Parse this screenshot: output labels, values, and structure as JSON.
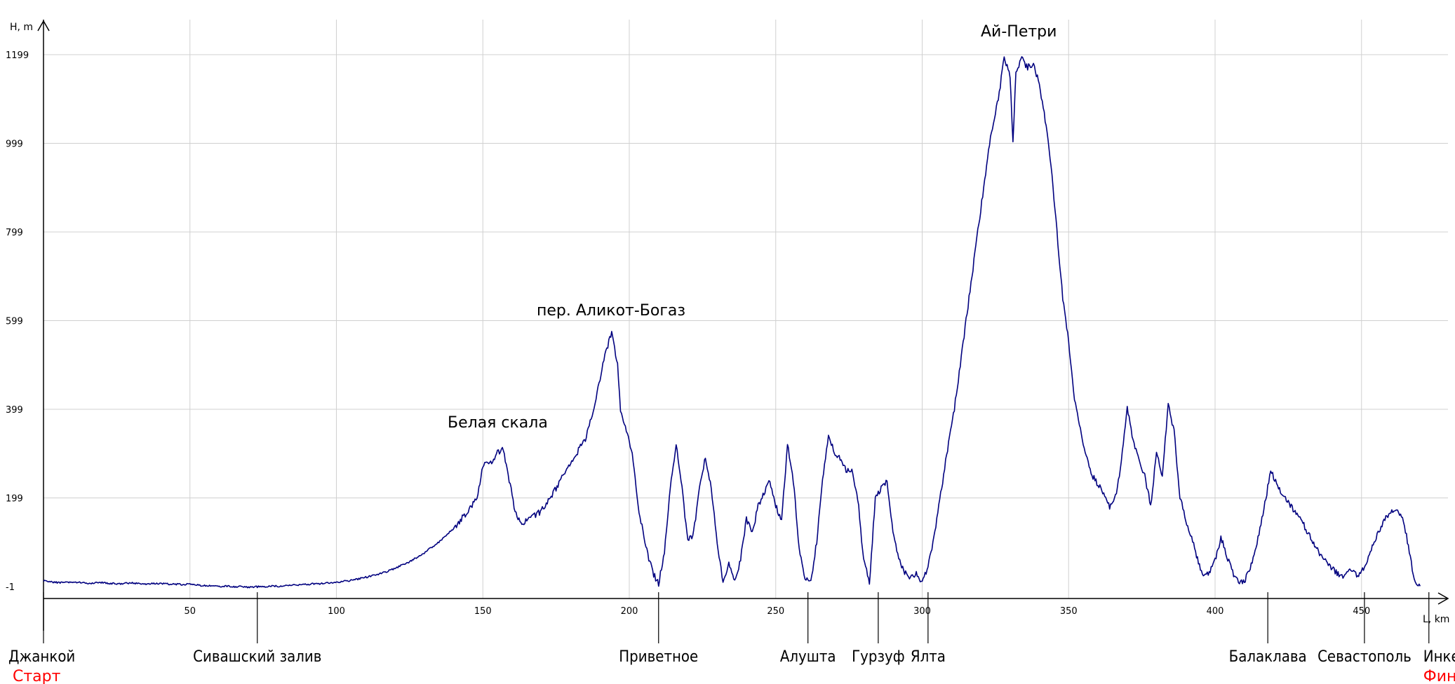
{
  "chart_data": {
    "type": "line",
    "ylabel": "H, m",
    "xlabel": "L, km",
    "xlim": [
      0,
      480
    ],
    "ylim": [
      -1,
      1199
    ],
    "x_ticks": [
      50,
      100,
      150,
      200,
      250,
      300,
      350,
      400,
      450
    ],
    "y_ticks": [
      -1,
      199,
      399,
      599,
      799,
      999,
      1199
    ],
    "grid": true,
    "line_color": "#00007f",
    "series": [
      {
        "values": [
          [
            0,
            12
          ],
          [
            5,
            8
          ],
          [
            10,
            10
          ],
          [
            15,
            6
          ],
          [
            20,
            8
          ],
          [
            25,
            5
          ],
          [
            30,
            7
          ],
          [
            35,
            5
          ],
          [
            40,
            6
          ],
          [
            45,
            4
          ],
          [
            50,
            4
          ],
          [
            55,
            1
          ],
          [
            60,
            0
          ],
          [
            65,
            -1
          ],
          [
            70,
            -2
          ],
          [
            75,
            -1
          ],
          [
            80,
            0
          ],
          [
            85,
            2
          ],
          [
            90,
            4
          ],
          [
            95,
            6
          ],
          [
            100,
            9
          ],
          [
            105,
            13
          ],
          [
            110,
            20
          ],
          [
            115,
            28
          ],
          [
            120,
            40
          ],
          [
            125,
            55
          ],
          [
            130,
            75
          ],
          [
            135,
            100
          ],
          [
            140,
            130
          ],
          [
            145,
            170
          ],
          [
            148,
            200
          ],
          [
            150,
            270
          ],
          [
            153,
            280
          ],
          [
            155,
            300
          ],
          [
            157,
            310
          ],
          [
            159,
            240
          ],
          [
            161,
            170
          ],
          [
            163,
            140
          ],
          [
            166,
            150
          ],
          [
            170,
            170
          ],
          [
            175,
            220
          ],
          [
            180,
            280
          ],
          [
            185,
            330
          ],
          [
            188,
            400
          ],
          [
            190,
            470
          ],
          [
            192,
            530
          ],
          [
            194,
            570
          ],
          [
            196,
            500
          ],
          [
            197,
            390
          ],
          [
            199,
            350
          ],
          [
            201,
            300
          ],
          [
            203,
            180
          ],
          [
            206,
            80
          ],
          [
            208,
            30
          ],
          [
            210,
            5
          ],
          [
            212,
            80
          ],
          [
            214,
            220
          ],
          [
            216,
            320
          ],
          [
            218,
            220
          ],
          [
            220,
            100
          ],
          [
            222,
            120
          ],
          [
            224,
            220
          ],
          [
            226,
            290
          ],
          [
            228,
            220
          ],
          [
            230,
            100
          ],
          [
            232,
            10
          ],
          [
            234,
            50
          ],
          [
            236,
            10
          ],
          [
            238,
            60
          ],
          [
            240,
            150
          ],
          [
            242,
            120
          ],
          [
            244,
            180
          ],
          [
            246,
            210
          ],
          [
            248,
            240
          ],
          [
            250,
            180
          ],
          [
            252,
            150
          ],
          [
            254,
            320
          ],
          [
            256,
            240
          ],
          [
            258,
            80
          ],
          [
            260,
            20
          ],
          [
            262,
            10
          ],
          [
            264,
            100
          ],
          [
            266,
            240
          ],
          [
            268,
            340
          ],
          [
            270,
            300
          ],
          [
            272,
            290
          ],
          [
            274,
            260
          ],
          [
            276,
            260
          ],
          [
            278,
            200
          ],
          [
            280,
            60
          ],
          [
            282,
            5
          ],
          [
            284,
            200
          ],
          [
            286,
            220
          ],
          [
            288,
            240
          ],
          [
            290,
            120
          ],
          [
            292,
            60
          ],
          [
            294,
            30
          ],
          [
            296,
            20
          ],
          [
            298,
            30
          ],
          [
            300,
            10
          ],
          [
            302,
            40
          ],
          [
            305,
            150
          ],
          [
            308,
            280
          ],
          [
            311,
            400
          ],
          [
            314,
            550
          ],
          [
            317,
            700
          ],
          [
            320,
            850
          ],
          [
            323,
            1000
          ],
          [
            326,
            1100
          ],
          [
            328,
            1190
          ],
          [
            330,
            1150
          ],
          [
            331,
            1000
          ],
          [
            332,
            1160
          ],
          [
            334,
            1190
          ],
          [
            336,
            1170
          ],
          [
            338,
            1180
          ],
          [
            340,
            1130
          ],
          [
            342,
            1050
          ],
          [
            344,
            950
          ],
          [
            346,
            800
          ],
          [
            348,
            650
          ],
          [
            350,
            550
          ],
          [
            352,
            420
          ],
          [
            355,
            320
          ],
          [
            358,
            250
          ],
          [
            361,
            220
          ],
          [
            364,
            180
          ],
          [
            366,
            200
          ],
          [
            368,
            280
          ],
          [
            370,
            400
          ],
          [
            372,
            330
          ],
          [
            374,
            280
          ],
          [
            376,
            250
          ],
          [
            378,
            180
          ],
          [
            380,
            300
          ],
          [
            382,
            250
          ],
          [
            384,
            410
          ],
          [
            386,
            350
          ],
          [
            388,
            200
          ],
          [
            390,
            150
          ],
          [
            392,
            110
          ],
          [
            394,
            60
          ],
          [
            396,
            20
          ],
          [
            398,
            30
          ],
          [
            400,
            60
          ],
          [
            402,
            110
          ],
          [
            404,
            70
          ],
          [
            406,
            30
          ],
          [
            408,
            10
          ],
          [
            410,
            10
          ],
          [
            413,
            60
          ],
          [
            416,
            150
          ],
          [
            419,
            260
          ],
          [
            422,
            220
          ],
          [
            425,
            190
          ],
          [
            428,
            160
          ],
          [
            431,
            130
          ],
          [
            434,
            90
          ],
          [
            437,
            60
          ],
          [
            440,
            40
          ],
          [
            443,
            20
          ],
          [
            446,
            40
          ],
          [
            449,
            20
          ],
          [
            452,
            60
          ],
          [
            455,
            110
          ],
          [
            458,
            150
          ],
          [
            461,
            175
          ],
          [
            464,
            160
          ],
          [
            466,
            90
          ],
          [
            468,
            10
          ],
          [
            470,
            0
          ]
        ]
      }
    ]
  },
  "peak_labels": {
    "ai_petri": "Ай-Петри",
    "alikot": "пер. Аликот-Богаз",
    "belaya": "Белая скала"
  },
  "places": [
    {
      "km": 0,
      "name": "Джанкой",
      "sub": "Старт"
    },
    {
      "km": 73,
      "name": "Сивашский залив"
    },
    {
      "km": 210,
      "name": "Приветное"
    },
    {
      "km": 261,
      "name": "Алушта"
    },
    {
      "km": 285,
      "name": "Гурзуф"
    },
    {
      "km": 302,
      "name": "Ялта"
    },
    {
      "km": 418,
      "name": "Балаклава"
    },
    {
      "km": 451,
      "name": "Севастополь"
    },
    {
      "km": 473,
      "name": "Инкерман",
      "sub": "Финиш"
    }
  ]
}
